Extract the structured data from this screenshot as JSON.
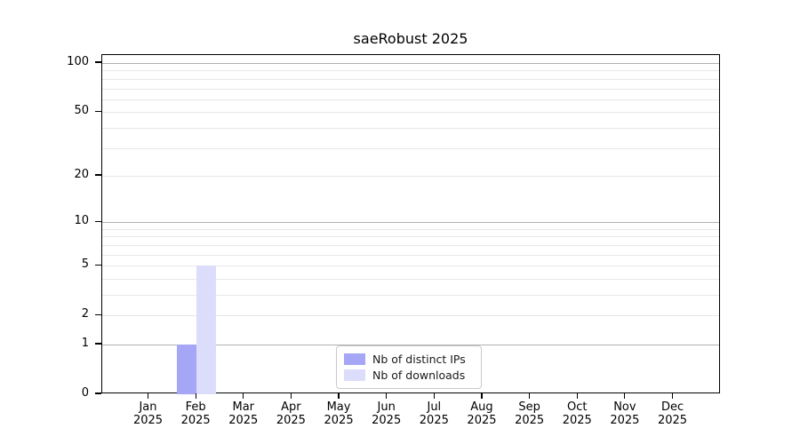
{
  "chart_data": {
    "type": "bar",
    "title": "saeRobust 2025",
    "year": "2025",
    "months": [
      "Jan",
      "Feb",
      "Mar",
      "Apr",
      "May",
      "Jun",
      "Jul",
      "Aug",
      "Sep",
      "Oct",
      "Nov",
      "Dec"
    ],
    "categories": [
      "Jan 2025",
      "Feb 2025",
      "Mar 2025",
      "Apr 2025",
      "May 2025",
      "Jun 2025",
      "Jul 2025",
      "Aug 2025",
      "Sep 2025",
      "Oct 2025",
      "Nov 2025",
      "Dec 2025"
    ],
    "series": [
      {
        "key": "distinct-ips",
        "name": "Nb of distinct IPs",
        "color": "#a5a6f6",
        "values": [
          0,
          1,
          0,
          0,
          0,
          0,
          0,
          0,
          0,
          0,
          0,
          0
        ]
      },
      {
        "key": "downloads",
        "name": "Nb of downloads",
        "color": "#dcddfa",
        "values": [
          0,
          5,
          0,
          0,
          0,
          0,
          0,
          0,
          0,
          0,
          0,
          0
        ]
      }
    ],
    "yscale": "log1p",
    "ylim": [
      0,
      112
    ],
    "y_labeled_ticks": [
      0,
      1,
      2,
      5,
      10,
      20,
      50,
      100
    ],
    "y_major_gridlines": [
      1,
      10,
      100
    ],
    "y_minor_gridlines": [
      2,
      3,
      4,
      5,
      6,
      7,
      8,
      9,
      20,
      30,
      40,
      50,
      60,
      70,
      80,
      90
    ],
    "grid": true,
    "legend_position": "lower center",
    "styles": {
      "major_grid_color": "#b1b1b1",
      "minor_grid_color": "#e7e7e7",
      "spine_color": "#000000",
      "text_color": "#000000",
      "background": "#ffffff"
    }
  }
}
